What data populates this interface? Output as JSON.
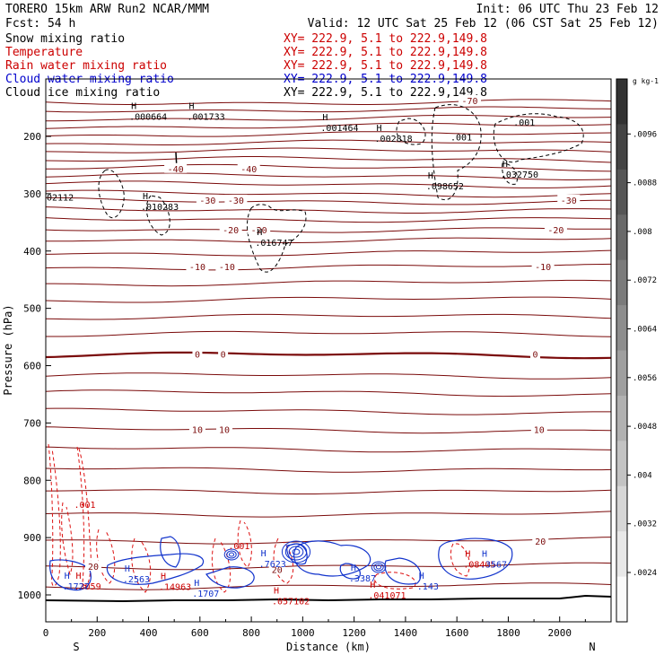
{
  "header": {
    "model_line": "TORERO  15km ARW   Run2   NCAR/MMM",
    "init_line": "Init: 06 UTC Thu 23 Feb 12",
    "fcst_line": "Fcst:    54 h",
    "valid_line": "Valid: 12 UTC Sat 25 Feb 12 (06 CST Sat 25 Feb 12)"
  },
  "legend": [
    {
      "label": "Snow mixing ratio",
      "xy": "XY= 222.9,  5.1 to 222.9,149.8",
      "color": "#000000"
    },
    {
      "label": "Temperature",
      "xy": "XY= 222.9,  5.1 to 222.9,149.8",
      "color": "#cc0000"
    },
    {
      "label": "Rain water mixing ratio",
      "xy": "XY= 222.9,  5.1 to 222.9,149.8",
      "color": "#cc0000"
    },
    {
      "label": "Cloud water mixing ratio",
      "xy": "XY= 222.9,  5.1 to 222.9,149.8",
      "color": "#0000cc"
    },
    {
      "label": "Cloud ice mixing ratio",
      "xy": "XY= 222.9,  5.1 to 222.9,149.8",
      "color": "#000000"
    }
  ],
  "colors": {
    "isotherm": "#7a0a0a",
    "rain": "#dd1111",
    "cloud_water": "#1133cc",
    "ice": "#000000"
  },
  "chart_data": {
    "type": "line",
    "xlabel": "Distance (km)",
    "ylabel": "Pressure (hPa)",
    "xlim": [
      0,
      2200
    ],
    "ylim": [
      1050,
      100
    ],
    "x_ticks": [
      0,
      200,
      400,
      600,
      800,
      1000,
      1200,
      1400,
      1600,
      1800,
      2000
    ],
    "y_ticks": [
      200,
      300,
      400,
      500,
      600,
      700,
      800,
      900,
      1000
    ],
    "x_end_labels": {
      "left": "S",
      "right": "N"
    },
    "colorbar": {
      "unit": "g kg-1",
      "ticks": [
        ".0024",
        ".0032",
        ".004",
        ".0048",
        ".0056",
        ".0064",
        ".0072",
        ".008",
        ".0088",
        ".0096"
      ]
    },
    "isotherm_levels": [
      {
        "p": 140,
        "label": "-70"
      },
      {
        "p": 153
      },
      {
        "p": 168
      },
      {
        "p": 182
      },
      {
        "p": 197
      },
      {
        "p": 212
      },
      {
        "p": 226
      },
      {
        "p": 241
      },
      {
        "p": 255,
        "label": "-40"
      },
      {
        "p": 270
      },
      {
        "p": 284
      },
      {
        "p": 300
      },
      {
        "p": 313,
        "label": "-30"
      },
      {
        "p": 328
      },
      {
        "p": 344
      },
      {
        "p": 362,
        "label": "-20"
      },
      {
        "p": 380
      },
      {
        "p": 403
      },
      {
        "p": 428,
        "label": "-10"
      },
      {
        "p": 456
      },
      {
        "p": 485
      },
      {
        "p": 515
      },
      {
        "p": 545
      },
      {
        "p": 582,
        "label": "0",
        "bold": true
      },
      {
        "p": 618
      },
      {
        "p": 648
      },
      {
        "p": 680
      },
      {
        "p": 712,
        "label": "10"
      },
      {
        "p": 745
      },
      {
        "p": 780
      },
      {
        "p": 818
      },
      {
        "p": 858
      },
      {
        "p": 905,
        "label": "20"
      },
      {
        "p": 950
      },
      {
        "p": 985
      }
    ],
    "temperature_labels": [
      {
        "x": 1650,
        "p": 137,
        "text": "-70"
      },
      {
        "x": 505,
        "p": 256,
        "text": "-40"
      },
      {
        "x": 790,
        "p": 256,
        "text": "-40"
      },
      {
        "x": 630,
        "p": 311,
        "text": "-30"
      },
      {
        "x": 740,
        "p": 311,
        "text": "-30"
      },
      {
        "x": 2035,
        "p": 311,
        "text": "-30"
      },
      {
        "x": 720,
        "p": 363,
        "text": "-20"
      },
      {
        "x": 830,
        "p": 363,
        "text": "-20"
      },
      {
        "x": 1985,
        "p": 363,
        "text": "-20"
      },
      {
        "x": 590,
        "p": 427,
        "text": "-10"
      },
      {
        "x": 705,
        "p": 427,
        "text": "-10"
      },
      {
        "x": 1935,
        "p": 427,
        "text": "-10"
      },
      {
        "x": 590,
        "p": 580,
        "text": "0"
      },
      {
        "x": 690,
        "p": 580,
        "text": "0"
      },
      {
        "x": 1905,
        "p": 580,
        "text": "0"
      },
      {
        "x": 590,
        "p": 711,
        "text": "10"
      },
      {
        "x": 695,
        "p": 711,
        "text": "10"
      },
      {
        "x": 1920,
        "p": 711,
        "text": "10"
      },
      {
        "x": 1925,
        "p": 906,
        "text": "20"
      },
      {
        "x": 185,
        "p": 950,
        "text": "20"
      },
      {
        "x": 900,
        "p": 955,
        "text": "20"
      }
    ],
    "point_annotations": [
      {
        "x": 325,
        "p": 165,
        "h": true,
        "text": ".000664",
        "color": "#000000"
      },
      {
        "x": 550,
        "p": 165,
        "h": true,
        "text": ".001733",
        "color": "#000000"
      },
      {
        "x": 1070,
        "p": 184,
        "h": true,
        "text": ".001464",
        "color": "#000000"
      },
      {
        "x": 1280,
        "p": 203,
        "h": true,
        "text": ".002818",
        "color": "#000000"
      },
      {
        "x": 1575,
        "p": 201,
        "h": false,
        "text": ".001",
        "color": "#000000"
      },
      {
        "x": 1820,
        "p": 175,
        "h": false,
        "text": ".001",
        "color": "#000000"
      },
      {
        "x": 1770,
        "p": 266,
        "h": true,
        "text": ".032750",
        "color": "#000000"
      },
      {
        "x": 1480,
        "p": 286,
        "h": true,
        "text": ".098652",
        "color": "#000000"
      },
      {
        "x": 0,
        "p": 306,
        "h": false,
        "text": "02112",
        "color": "#000000"
      },
      {
        "x": 370,
        "p": 322,
        "h": true,
        "text": ".010283",
        "color": "#000000"
      },
      {
        "x": 815,
        "p": 385,
        "h": true,
        "text": ".016747",
        "color": "#000000"
      },
      {
        "x": 110,
        "p": 842,
        "h": false,
        "text": ".001",
        "color": "#cc0000"
      },
      {
        "x": 710,
        "p": 914,
        "h": false,
        "text": ".001",
        "color": "#cc0000"
      },
      {
        "x": 110,
        "p": 984,
        "h": true,
        "text": ".3059",
        "color": "#cc0000"
      },
      {
        "x": 440,
        "p": 985,
        "h": true,
        "text": ".14963",
        "color": "#cc0000"
      },
      {
        "x": 880,
        "p": 1010,
        "h": true,
        "text": ".057102",
        "color": "#cc0000"
      },
      {
        "x": 1255,
        "p": 1000,
        "h": true,
        "text": ".041071",
        "color": "#cc0000"
      },
      {
        "x": 1625,
        "p": 946,
        "h": true,
        "text": ".08405",
        "color": "#cc0000"
      },
      {
        "x": 65,
        "p": 984,
        "h": true,
        "text": ".1727",
        "color": "#1133cc"
      },
      {
        "x": 300,
        "p": 972,
        "h": true,
        "text": ".2563",
        "color": "#1133cc"
      },
      {
        "x": 570,
        "p": 997,
        "h": true,
        "text": ".1707",
        "color": "#1133cc"
      },
      {
        "x": 830,
        "p": 945,
        "h": true,
        "text": ".7623",
        "color": "#1133cc"
      },
      {
        "x": 1180,
        "p": 970,
        "h": true,
        "text": ".3387",
        "color": "#1133cc"
      },
      {
        "x": 1445,
        "p": 984,
        "h": true,
        "text": ".143",
        "color": "#1133cc"
      },
      {
        "x": 1690,
        "p": 946,
        "h": true,
        "text": ".3567",
        "color": "#1133cc"
      }
    ]
  }
}
